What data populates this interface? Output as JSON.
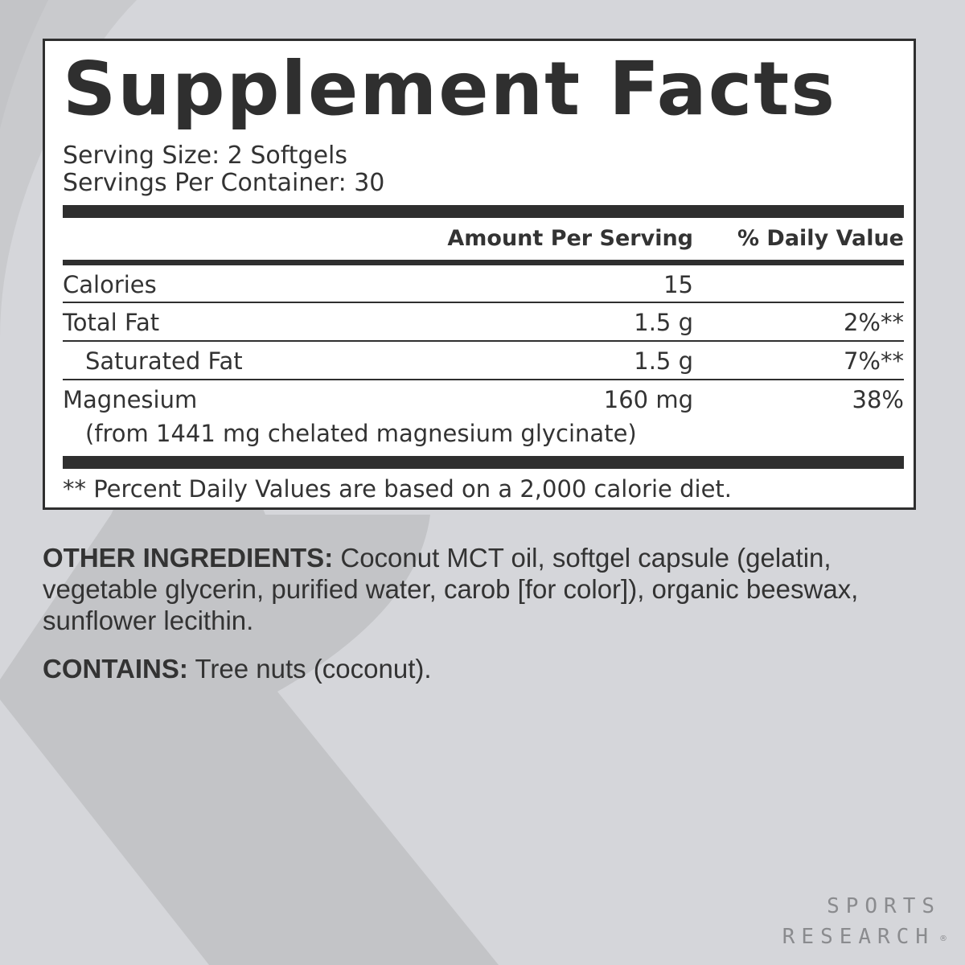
{
  "colors": {
    "background": "#d5d6da",
    "watermark": "#c3c4c7",
    "text": "#2f2f2f",
    "panel": "#ffffff"
  },
  "label": {
    "title": "Supplement Facts",
    "serving_size": "Serving Size: 2 Softgels",
    "servings_per_container": "Servings Per Container: 30",
    "header": {
      "amount": "Amount Per Serving",
      "daily_value": "% Daily Value"
    },
    "rows": [
      {
        "name": "Calories",
        "amount": "15",
        "dv": ""
      },
      {
        "name": "Total Fat",
        "amount": "1.5 g",
        "dv": "2%**"
      },
      {
        "name": "Saturated Fat",
        "amount": "1.5 g",
        "dv": "7%**"
      },
      {
        "name": "Magnesium",
        "amount": "160 mg",
        "dv": "38%",
        "sub": "(from 1441 mg chelated magnesium glycinate)"
      }
    ],
    "footnote": "** Percent Daily Values are based on a 2,000 calorie diet."
  },
  "other_ingredients": {
    "label": "OTHER INGREDIENTS:",
    "text": " Coconut MCT oil, softgel capsule (gelatin, vegetable glycerin, purified water, carob [for color]), organic beeswax, sunflower lecithin."
  },
  "contains": {
    "label": "CONTAINS:",
    "text": " Tree nuts (coconut)."
  },
  "brand": {
    "line1": "SPORTS",
    "line2": "RESEARCH",
    "mark": "®"
  }
}
